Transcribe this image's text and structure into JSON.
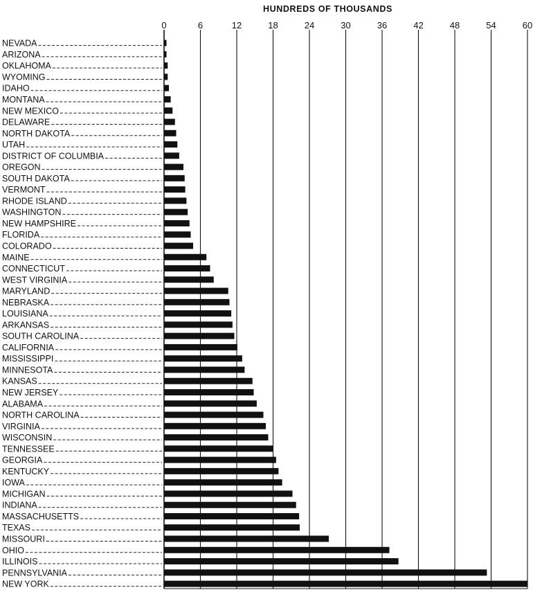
{
  "chart_data": {
    "type": "bar",
    "orientation": "horizontal",
    "title": "HUNDREDS OF THOUSANDS",
    "xlabel": "",
    "ylabel": "",
    "xlim": [
      0,
      60
    ],
    "ticks": [
      "0",
      "6",
      "12",
      "18",
      "24",
      "30",
      "36",
      "42",
      "48",
      "54",
      "60"
    ],
    "grid": true,
    "categories": [
      "NEVADA",
      "ARIZONA",
      "OKLAHOMA",
      "WYOMING",
      "IDAHO",
      "MONTANA",
      "NEW MEXICO",
      "DELAWARE",
      "NORTH DAKOTA",
      "UTAH",
      "DISTRICT OF COLUMBIA",
      "OREGON",
      "SOUTH DAKOTA",
      "VERMONT",
      "RHODE ISLAND",
      "WASHINGTON",
      "NEW HAMPSHIRE",
      "FLORIDA",
      "COLORADO",
      "MAINE",
      "CONNECTICUT",
      "WEST VIRGINIA",
      "MARYLAND",
      "NEBRASKA",
      "LOUISIANA",
      "ARKANSAS",
      "SOUTH CAROLINA",
      "CALIFORNIA",
      "MISSISSIPPI",
      "MINNESOTA",
      "KANSAS",
      "NEW JERSEY",
      "ALABAMA",
      "NORTH CAROLINA",
      "VIRGINIA",
      "WISCONSIN",
      "TENNESSEE",
      "GEORGIA",
      "KENTUCKY",
      "IOWA",
      "MICHIGAN",
      "INDIANA",
      "MASSACHUSETTS",
      "TEXAS",
      "MISSOURI",
      "OHIO",
      "ILLINOIS",
      "PENNSYLVANIA",
      "NEW YORK"
    ],
    "values": [
      0.4,
      0.4,
      0.6,
      0.6,
      0.8,
      1.1,
      1.4,
      1.8,
      2.0,
      2.2,
      2.5,
      3.2,
      3.4,
      3.5,
      3.7,
      3.9,
      4.2,
      4.4,
      4.8,
      7.0,
      7.6,
      8.2,
      10.6,
      10.8,
      11.1,
      11.3,
      11.6,
      12.1,
      12.9,
      13.3,
      14.6,
      14.8,
      15.3,
      16.4,
      16.8,
      17.2,
      18.0,
      18.5,
      18.9,
      19.5,
      21.2,
      21.8,
      22.3,
      22.4,
      27.2,
      37.2,
      38.7,
      53.3,
      60.0
    ]
  }
}
